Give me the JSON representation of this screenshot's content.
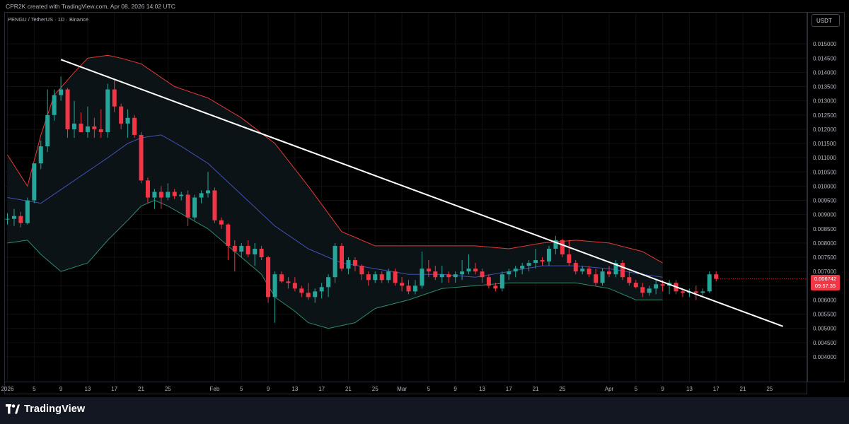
{
  "header": {
    "credit": "CPR2K created with TradingView.com, Apr 08, 2026 14:02 UTC",
    "symbol_line": "PENGU / TetherUS · 1D · Binance"
  },
  "price_axis": {
    "currency_label": "USDT",
    "last_price": "0.006742",
    "countdown": "09:57:35"
  },
  "footer": {
    "brand": "TradingView"
  },
  "colors": {
    "background": "#000000",
    "candle_up": "#26a69a",
    "candle_down": "#f23645",
    "bb_upper": "#e53935",
    "bb_lower": "#2e8b6a",
    "bb_basis": "#3f51b5",
    "bb_fill": "#0c1316",
    "trendline": "#ffffff",
    "grid": "#111111"
  },
  "chart_data": {
    "type": "candlestick",
    "title": "PENGU / TetherUS · 1D · Binance",
    "ylim": [
      0.0038,
      0.0155
    ],
    "y_ticks": [
      "0.004000",
      "0.004500",
      "0.005000",
      "0.005500",
      "0.006000",
      "0.006500",
      "0.007000",
      "0.007500",
      "0.008000",
      "0.008500",
      "0.009000",
      "0.009500",
      "0.010000",
      "0.010500",
      "0.011000",
      "0.011500",
      "0.012000",
      "0.012500",
      "0.013000",
      "0.013500",
      "0.014000",
      "0.014500",
      "0.015000"
    ],
    "x_ticks": [
      {
        "day": 0,
        "label": "2026"
      },
      {
        "day": 4,
        "label": "5"
      },
      {
        "day": 8,
        "label": "9"
      },
      {
        "day": 12,
        "label": "13"
      },
      {
        "day": 16,
        "label": "17"
      },
      {
        "day": 20,
        "label": "21"
      },
      {
        "day": 24,
        "label": "25"
      },
      {
        "day": 31,
        "label": "Feb"
      },
      {
        "day": 35,
        "label": "5"
      },
      {
        "day": 39,
        "label": "9"
      },
      {
        "day": 43,
        "label": "13"
      },
      {
        "day": 47,
        "label": "17"
      },
      {
        "day": 51,
        "label": "21"
      },
      {
        "day": 55,
        "label": "25"
      },
      {
        "day": 59,
        "label": "Mar"
      },
      {
        "day": 63,
        "label": "5"
      },
      {
        "day": 67,
        "label": "9"
      },
      {
        "day": 71,
        "label": "13"
      },
      {
        "day": 75,
        "label": "17"
      },
      {
        "day": 79,
        "label": "21"
      },
      {
        "day": 83,
        "label": "25"
      },
      {
        "day": 90,
        "label": "Apr"
      },
      {
        "day": 94,
        "label": "5"
      },
      {
        "day": 98,
        "label": "9"
      },
      {
        "day": 102,
        "label": "13"
      },
      {
        "day": 106,
        "label": "17"
      },
      {
        "day": 110,
        "label": "21"
      },
      {
        "day": 114,
        "label": "25"
      }
    ],
    "candles": [
      {
        "o": 0.00885,
        "h": 0.00905,
        "l": 0.00865,
        "c": 0.00885
      },
      {
        "o": 0.00885,
        "h": 0.0092,
        "l": 0.0086,
        "c": 0.00895
      },
      {
        "o": 0.00895,
        "h": 0.0091,
        "l": 0.00855,
        "c": 0.0087
      },
      {
        "o": 0.0087,
        "h": 0.0096,
        "l": 0.00865,
        "c": 0.0095
      },
      {
        "o": 0.0095,
        "h": 0.0108,
        "l": 0.0094,
        "c": 0.0108
      },
      {
        "o": 0.0108,
        "h": 0.0116,
        "l": 0.0106,
        "c": 0.0114
      },
      {
        "o": 0.0114,
        "h": 0.0134,
        "l": 0.0112,
        "c": 0.0125
      },
      {
        "o": 0.0125,
        "h": 0.0134,
        "l": 0.0123,
        "c": 0.0132
      },
      {
        "o": 0.0132,
        "h": 0.01385,
        "l": 0.013,
        "c": 0.0134
      },
      {
        "o": 0.0134,
        "h": 0.01345,
        "l": 0.0117,
        "c": 0.012
      },
      {
        "o": 0.012,
        "h": 0.013,
        "l": 0.0117,
        "c": 0.0122
      },
      {
        "o": 0.0122,
        "h": 0.0126,
        "l": 0.0119,
        "c": 0.0119
      },
      {
        "o": 0.0119,
        "h": 0.0128,
        "l": 0.0117,
        "c": 0.0121
      },
      {
        "o": 0.0121,
        "h": 0.0124,
        "l": 0.0117,
        "c": 0.012
      },
      {
        "o": 0.012,
        "h": 0.0127,
        "l": 0.0117,
        "c": 0.0119
      },
      {
        "o": 0.0119,
        "h": 0.0136,
        "l": 0.0117,
        "c": 0.0134
      },
      {
        "o": 0.0134,
        "h": 0.01375,
        "l": 0.0126,
        "c": 0.0128
      },
      {
        "o": 0.0128,
        "h": 0.0129,
        "l": 0.012,
        "c": 0.0122
      },
      {
        "o": 0.0122,
        "h": 0.0127,
        "l": 0.0117,
        "c": 0.0124
      },
      {
        "o": 0.0124,
        "h": 0.0125,
        "l": 0.0117,
        "c": 0.0118
      },
      {
        "o": 0.0118,
        "h": 0.0119,
        "l": 0.0101,
        "c": 0.0102
      },
      {
        "o": 0.0102,
        "h": 0.0103,
        "l": 0.0094,
        "c": 0.0096
      },
      {
        "o": 0.0096,
        "h": 0.0099,
        "l": 0.0092,
        "c": 0.0098
      },
      {
        "o": 0.0098,
        "h": 0.01,
        "l": 0.0092,
        "c": 0.0096
      },
      {
        "o": 0.0096,
        "h": 0.0101,
        "l": 0.0095,
        "c": 0.0098
      },
      {
        "o": 0.0098,
        "h": 0.0099,
        "l": 0.00955,
        "c": 0.00965
      },
      {
        "o": 0.00965,
        "h": 0.0098,
        "l": 0.0095,
        "c": 0.0097
      },
      {
        "o": 0.0097,
        "h": 0.00985,
        "l": 0.0086,
        "c": 0.0089
      },
      {
        "o": 0.0089,
        "h": 0.0097,
        "l": 0.0088,
        "c": 0.0096
      },
      {
        "o": 0.0096,
        "h": 0.00985,
        "l": 0.0094,
        "c": 0.00975
      },
      {
        "o": 0.00975,
        "h": 0.0105,
        "l": 0.0096,
        "c": 0.00985
      },
      {
        "o": 0.00985,
        "h": 0.00995,
        "l": 0.0087,
        "c": 0.0088
      },
      {
        "o": 0.0088,
        "h": 0.0089,
        "l": 0.0085,
        "c": 0.00865
      },
      {
        "o": 0.00865,
        "h": 0.0087,
        "l": 0.0074,
        "c": 0.0079
      },
      {
        "o": 0.0079,
        "h": 0.0081,
        "l": 0.007,
        "c": 0.0077
      },
      {
        "o": 0.0077,
        "h": 0.008,
        "l": 0.0075,
        "c": 0.0079
      },
      {
        "o": 0.0079,
        "h": 0.0081,
        "l": 0.0075,
        "c": 0.0076
      },
      {
        "o": 0.0076,
        "h": 0.008,
        "l": 0.0072,
        "c": 0.0078
      },
      {
        "o": 0.0078,
        "h": 0.0079,
        "l": 0.0074,
        "c": 0.0075
      },
      {
        "o": 0.0075,
        "h": 0.00755,
        "l": 0.0059,
        "c": 0.0061
      },
      {
        "o": 0.0061,
        "h": 0.007,
        "l": 0.0052,
        "c": 0.0069
      },
      {
        "o": 0.0069,
        "h": 0.007,
        "l": 0.0066,
        "c": 0.00665
      },
      {
        "o": 0.00665,
        "h": 0.0068,
        "l": 0.0064,
        "c": 0.0066
      },
      {
        "o": 0.0066,
        "h": 0.0068,
        "l": 0.0063,
        "c": 0.0064
      },
      {
        "o": 0.0064,
        "h": 0.0065,
        "l": 0.0061,
        "c": 0.00625
      },
      {
        "o": 0.00625,
        "h": 0.0066,
        "l": 0.006,
        "c": 0.0061
      },
      {
        "o": 0.0061,
        "h": 0.0064,
        "l": 0.0059,
        "c": 0.0063
      },
      {
        "o": 0.0063,
        "h": 0.0066,
        "l": 0.00605,
        "c": 0.00645
      },
      {
        "o": 0.00645,
        "h": 0.0069,
        "l": 0.0061,
        "c": 0.0068
      },
      {
        "o": 0.0068,
        "h": 0.008,
        "l": 0.0066,
        "c": 0.0079
      },
      {
        "o": 0.0079,
        "h": 0.008,
        "l": 0.007,
        "c": 0.0071
      },
      {
        "o": 0.0071,
        "h": 0.0075,
        "l": 0.0069,
        "c": 0.0074
      },
      {
        "o": 0.0074,
        "h": 0.0075,
        "l": 0.007,
        "c": 0.0072
      },
      {
        "o": 0.0072,
        "h": 0.00725,
        "l": 0.0067,
        "c": 0.0069
      },
      {
        "o": 0.0069,
        "h": 0.007,
        "l": 0.0065,
        "c": 0.0067
      },
      {
        "o": 0.0067,
        "h": 0.007,
        "l": 0.0066,
        "c": 0.0069
      },
      {
        "o": 0.0069,
        "h": 0.007,
        "l": 0.0066,
        "c": 0.0067
      },
      {
        "o": 0.0067,
        "h": 0.0071,
        "l": 0.0066,
        "c": 0.007
      },
      {
        "o": 0.007,
        "h": 0.0071,
        "l": 0.0065,
        "c": 0.0066
      },
      {
        "o": 0.0066,
        "h": 0.0068,
        "l": 0.0063,
        "c": 0.0065
      },
      {
        "o": 0.0065,
        "h": 0.0067,
        "l": 0.0062,
        "c": 0.0063
      },
      {
        "o": 0.0063,
        "h": 0.0067,
        "l": 0.0062,
        "c": 0.0065
      },
      {
        "o": 0.0065,
        "h": 0.0077,
        "l": 0.0064,
        "c": 0.0071
      },
      {
        "o": 0.0071,
        "h": 0.0074,
        "l": 0.0068,
        "c": 0.007
      },
      {
        "o": 0.007,
        "h": 0.0072,
        "l": 0.0067,
        "c": 0.0068
      },
      {
        "o": 0.0068,
        "h": 0.0072,
        "l": 0.0066,
        "c": 0.0069
      },
      {
        "o": 0.0069,
        "h": 0.007,
        "l": 0.0066,
        "c": 0.0068
      },
      {
        "o": 0.0068,
        "h": 0.007,
        "l": 0.0066,
        "c": 0.0069
      },
      {
        "o": 0.0069,
        "h": 0.0074,
        "l": 0.0067,
        "c": 0.007
      },
      {
        "o": 0.007,
        "h": 0.0076,
        "l": 0.0069,
        "c": 0.0071
      },
      {
        "o": 0.0071,
        "h": 0.0073,
        "l": 0.0069,
        "c": 0.007
      },
      {
        "o": 0.007,
        "h": 0.0071,
        "l": 0.0066,
        "c": 0.0068
      },
      {
        "o": 0.0068,
        "h": 0.0069,
        "l": 0.0064,
        "c": 0.0065
      },
      {
        "o": 0.0065,
        "h": 0.0066,
        "l": 0.0063,
        "c": 0.0064
      },
      {
        "o": 0.0064,
        "h": 0.007,
        "l": 0.0063,
        "c": 0.0069
      },
      {
        "o": 0.0069,
        "h": 0.0071,
        "l": 0.0067,
        "c": 0.007
      },
      {
        "o": 0.007,
        "h": 0.0072,
        "l": 0.0068,
        "c": 0.0071
      },
      {
        "o": 0.0071,
        "h": 0.0073,
        "l": 0.0069,
        "c": 0.0072
      },
      {
        "o": 0.0072,
        "h": 0.0074,
        "l": 0.007,
        "c": 0.0073
      },
      {
        "o": 0.0073,
        "h": 0.0078,
        "l": 0.0071,
        "c": 0.0074
      },
      {
        "o": 0.0074,
        "h": 0.0075,
        "l": 0.0072,
        "c": 0.00735
      },
      {
        "o": 0.00735,
        "h": 0.0079,
        "l": 0.0072,
        "c": 0.0078
      },
      {
        "o": 0.0078,
        "h": 0.00825,
        "l": 0.0076,
        "c": 0.0081
      },
      {
        "o": 0.0081,
        "h": 0.00815,
        "l": 0.0075,
        "c": 0.0076
      },
      {
        "o": 0.0076,
        "h": 0.0081,
        "l": 0.0072,
        "c": 0.0073
      },
      {
        "o": 0.0073,
        "h": 0.0074,
        "l": 0.0069,
        "c": 0.007
      },
      {
        "o": 0.007,
        "h": 0.0072,
        "l": 0.0069,
        "c": 0.0071
      },
      {
        "o": 0.0071,
        "h": 0.0072,
        "l": 0.0068,
        "c": 0.0069
      },
      {
        "o": 0.0069,
        "h": 0.0071,
        "l": 0.0065,
        "c": 0.0066
      },
      {
        "o": 0.0066,
        "h": 0.0071,
        "l": 0.0065,
        "c": 0.007
      },
      {
        "o": 0.007,
        "h": 0.0072,
        "l": 0.0068,
        "c": 0.0069
      },
      {
        "o": 0.0069,
        "h": 0.0074,
        "l": 0.0068,
        "c": 0.0073
      },
      {
        "o": 0.0073,
        "h": 0.0074,
        "l": 0.0067,
        "c": 0.0068
      },
      {
        "o": 0.0068,
        "h": 0.007,
        "l": 0.0065,
        "c": 0.0066
      },
      {
        "o": 0.0066,
        "h": 0.0067,
        "l": 0.0064,
        "c": 0.00645
      },
      {
        "o": 0.00645,
        "h": 0.0066,
        "l": 0.0061,
        "c": 0.00625
      },
      {
        "o": 0.00625,
        "h": 0.0065,
        "l": 0.00615,
        "c": 0.0064
      },
      {
        "o": 0.0064,
        "h": 0.0067,
        "l": 0.0062,
        "c": 0.00655
      },
      {
        "o": 0.00655,
        "h": 0.0067,
        "l": 0.0063,
        "c": 0.0065
      },
      {
        "o": 0.0065,
        "h": 0.0067,
        "l": 0.0062,
        "c": 0.0066
      },
      {
        "o": 0.0066,
        "h": 0.0067,
        "l": 0.0062,
        "c": 0.0063
      },
      {
        "o": 0.0063,
        "h": 0.0064,
        "l": 0.0061,
        "c": 0.00625
      },
      {
        "o": 0.00625,
        "h": 0.0064,
        "l": 0.0061,
        "c": 0.0063
      },
      {
        "o": 0.0063,
        "h": 0.0065,
        "l": 0.006,
        "c": 0.00625
      },
      {
        "o": 0.00625,
        "h": 0.0064,
        "l": 0.00615,
        "c": 0.0063
      },
      {
        "o": 0.0063,
        "h": 0.007,
        "l": 0.00625,
        "c": 0.0069
      },
      {
        "o": 0.0069,
        "h": 0.007,
        "l": 0.00665,
        "c": 0.006742
      }
    ],
    "bollinger": {
      "upper": [
        [
          0,
          0.0111
        ],
        [
          3,
          0.01
        ],
        [
          5,
          0.0118
        ],
        [
          7,
          0.0132
        ],
        [
          10,
          0.014
        ],
        [
          12,
          0.0145
        ],
        [
          15,
          0.0146
        ],
        [
          17,
          0.0145
        ],
        [
          20,
          0.0143
        ],
        [
          25,
          0.0135
        ],
        [
          30,
          0.0131
        ],
        [
          35,
          0.0124
        ],
        [
          40,
          0.0115
        ],
        [
          45,
          0.01
        ],
        [
          50,
          0.0084
        ],
        [
          55,
          0.0079
        ],
        [
          60,
          0.0079
        ],
        [
          65,
          0.0079
        ],
        [
          70,
          0.0079
        ],
        [
          75,
          0.0078
        ],
        [
          80,
          0.008
        ],
        [
          85,
          0.0081
        ],
        [
          90,
          0.008
        ],
        [
          95,
          0.0077
        ],
        [
          98,
          0.0073
        ]
      ],
      "basis": [
        [
          0,
          0.0096
        ],
        [
          5,
          0.0094
        ],
        [
          10,
          0.0102
        ],
        [
          15,
          0.011
        ],
        [
          18,
          0.0115
        ],
        [
          20,
          0.0117
        ],
        [
          23,
          0.0118
        ],
        [
          26,
          0.0114
        ],
        [
          30,
          0.0108
        ],
        [
          35,
          0.0097
        ],
        [
          40,
          0.0086
        ],
        [
          45,
          0.0078
        ],
        [
          50,
          0.0073
        ],
        [
          55,
          0.0071
        ],
        [
          60,
          0.0069
        ],
        [
          65,
          0.0069
        ],
        [
          70,
          0.0068
        ],
        [
          75,
          0.007
        ],
        [
          80,
          0.0072
        ],
        [
          85,
          0.0072
        ],
        [
          90,
          0.0071
        ],
        [
          95,
          0.0069
        ],
        [
          98,
          0.0068
        ]
      ],
      "lower": [
        [
          0,
          0.008
        ],
        [
          3,
          0.0081
        ],
        [
          5,
          0.0076
        ],
        [
          8,
          0.007
        ],
        [
          12,
          0.0073
        ],
        [
          15,
          0.0081
        ],
        [
          18,
          0.0088
        ],
        [
          20,
          0.0093
        ],
        [
          22,
          0.0095
        ],
        [
          24,
          0.0093
        ],
        [
          27,
          0.0089
        ],
        [
          30,
          0.0085
        ],
        [
          35,
          0.0075
        ],
        [
          38,
          0.0069
        ],
        [
          40,
          0.0061
        ],
        [
          43,
          0.0056
        ],
        [
          45,
          0.0052
        ],
        [
          48,
          0.005
        ],
        [
          52,
          0.0052
        ],
        [
          55,
          0.0057
        ],
        [
          60,
          0.006
        ],
        [
          65,
          0.0064
        ],
        [
          70,
          0.0065
        ],
        [
          75,
          0.0066
        ],
        [
          80,
          0.0066
        ],
        [
          85,
          0.0066
        ],
        [
          90,
          0.0064
        ],
        [
          94,
          0.006
        ],
        [
          98,
          0.006
        ]
      ]
    },
    "trendline": {
      "from": {
        "day": 8,
        "price": 0.01445
      },
      "to": {
        "day": 116,
        "price": 0.00507
      }
    },
    "last_price": 0.006742
  }
}
